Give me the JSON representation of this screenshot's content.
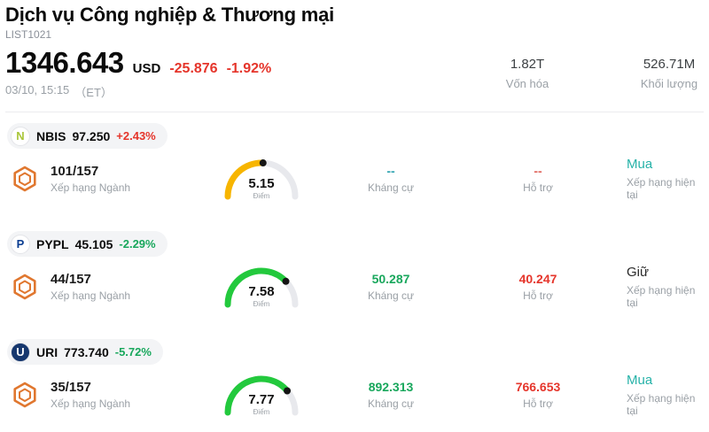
{
  "header": {
    "title": "Dịch vụ Công nghiệp & Thương mại",
    "subtitle": "LIST1021"
  },
  "quote": {
    "price": "1346.643",
    "currency": "USD",
    "change": "-25.876",
    "change_pct": "-1.92%",
    "change_color": "#e5352b",
    "datetime": "03/10, 15:15",
    "timezone": "（ET）",
    "stats": [
      {
        "value": "1.82T",
        "label": "Vốn hóa"
      },
      {
        "value": "526.71M",
        "label": "Khối lượng"
      }
    ]
  },
  "rows": [
    {
      "ticker": "NBIS",
      "price": "97.250",
      "change_pct": "+2.43%",
      "change_color": "#e5352b",
      "logo": {
        "text": "N",
        "bg": "#ffffff",
        "fg": "#a9c63a"
      },
      "rank": "101/157",
      "rank_label": "Xếp hạng Ngành",
      "gauge": {
        "value": 5.15,
        "display": "5.15",
        "label": "Điểm",
        "color": "#f7b500",
        "track": "#e8e9ed"
      },
      "resistance": {
        "value": "--",
        "label": "Kháng cự",
        "color": "#2fa3b0"
      },
      "support": {
        "value": "--",
        "label": "Hỗ trợ",
        "color": "#e0655c"
      },
      "rating": {
        "value": "Mua",
        "label": "Xếp hạng hiện tại",
        "color": "#26b2a8"
      }
    },
    {
      "ticker": "PYPL",
      "price": "45.105",
      "change_pct": "-2.29%",
      "change_color": "#18a75c",
      "logo": {
        "text": "P",
        "bg": "#ffffff",
        "fg": "#0b3d91"
      },
      "rank": "44/157",
      "rank_label": "Xếp hạng Ngành",
      "gauge": {
        "value": 7.58,
        "display": "7.58",
        "label": "Điểm",
        "color": "#23c93d",
        "track": "#e8e9ed"
      },
      "resistance": {
        "value": "50.287",
        "label": "Kháng cự",
        "color": "#18a75c"
      },
      "support": {
        "value": "40.247",
        "label": "Hỗ trợ",
        "color": "#e5352b"
      },
      "rating": {
        "value": "Giữ",
        "label": "Xếp hạng hiện tại",
        "color": "#2a2a2a"
      }
    },
    {
      "ticker": "URI",
      "price": "773.740",
      "change_pct": "-5.72%",
      "change_color": "#18a75c",
      "logo": {
        "text": "U",
        "bg": "#16376e",
        "fg": "#ffffff"
      },
      "rank": "35/157",
      "rank_label": "Xếp hạng Ngành",
      "gauge": {
        "value": 7.77,
        "display": "7.77",
        "label": "Điểm",
        "color": "#23c93d",
        "track": "#e8e9ed"
      },
      "resistance": {
        "value": "892.313",
        "label": "Kháng cự",
        "color": "#18a75c"
      },
      "support": {
        "value": "766.653",
        "label": "Hỗ trợ",
        "color": "#e5352b"
      },
      "rating": {
        "value": "Mua",
        "label": "Xếp hạng hiện tại",
        "color": "#26b2a8"
      }
    }
  ]
}
